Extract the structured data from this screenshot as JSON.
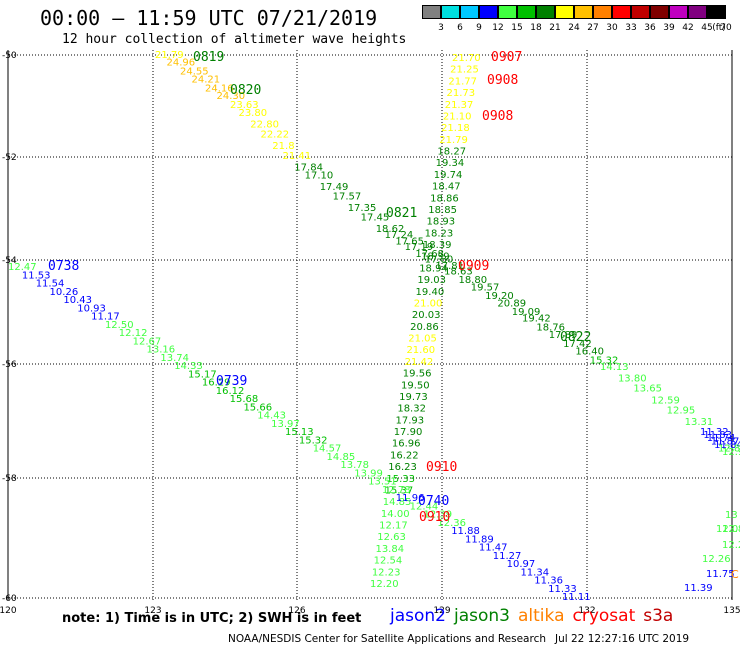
{
  "header": {
    "title": "00:00 – 11:59 UTC 07/21/2019",
    "subtitle": "12 hour collection of altimeter wave heights"
  },
  "colorbar": {
    "unit": "(ft)",
    "labels": [
      "3",
      "6",
      "9",
      "12",
      "15",
      "18",
      "21",
      "24",
      "27",
      "30",
      "33",
      "36",
      "39",
      "42",
      "45",
      "70"
    ],
    "colors": [
      "#808080",
      "#00e0e0",
      "#00c8ff",
      "#0000ff",
      "#40ff40",
      "#00c000",
      "#008000",
      "#ffff00",
      "#ffc000",
      "#ff8000",
      "#ff0000",
      "#c00000",
      "#800000",
      "#c000c0",
      "#800080",
      "#000000"
    ]
  },
  "axes": {
    "x_labels": [
      "120",
      "123",
      "126",
      "129",
      "132",
      "135"
    ],
    "y_labels": [
      "-50",
      "-52",
      "-54",
      "-56",
      "-58",
      "-60"
    ]
  },
  "tracks": [
    {
      "name": "t1",
      "points": [
        {
          "v": "21.79",
          "c": "#ffff00"
        },
        {
          "v": "24.96",
          "c": "#ffc000"
        },
        {
          "v": "24.55",
          "c": "#ffc000"
        },
        {
          "v": "24.21",
          "c": "#ffc000"
        },
        {
          "v": "24.16",
          "c": "#ffc000"
        },
        {
          "v": "24.30",
          "c": "#ffc000"
        },
        {
          "v": "23.63",
          "c": "#ffff00"
        },
        {
          "v": "23.80",
          "c": "#ffff00"
        },
        {
          "v": "22.80",
          "c": "#ffff00"
        },
        {
          "v": "22.22",
          "c": "#ffff00"
        },
        {
          "v": "21.8",
          "c": "#ffff00"
        },
        {
          "v": "21.41",
          "c": "#ffff00"
        },
        {
          "v": "17.84",
          "c": "#008000"
        },
        {
          "v": "17.10",
          "c": "#008000"
        },
        {
          "v": "17.49",
          "c": "#008000"
        },
        {
          "v": "17.57",
          "c": "#008000"
        },
        {
          "v": "17.35",
          "c": "#008000"
        },
        {
          "v": "17.45",
          "c": "#008000"
        },
        {
          "v": "18.62",
          "c": "#008000"
        },
        {
          "v": "17.24",
          "c": "#008000"
        },
        {
          "v": "17.65",
          "c": "#008000"
        },
        {
          "v": "17.19",
          "c": "#008000"
        },
        {
          "v": "17.68",
          "c": "#008000"
        },
        {
          "v": "17.80",
          "c": "#008000"
        },
        {
          "v": "17.81",
          "c": "#008000"
        },
        {
          "v": "18.63",
          "c": "#008000"
        },
        {
          "v": "18.80",
          "c": "#008000"
        },
        {
          "v": "19.57",
          "c": "#008000"
        },
        {
          "v": "19.20",
          "c": "#008000"
        },
        {
          "v": "20.89",
          "c": "#008000"
        },
        {
          "v": "19.09",
          "c": "#008000"
        },
        {
          "v": "19.42",
          "c": "#008000"
        },
        {
          "v": "18.76",
          "c": "#008000"
        },
        {
          "v": "17.89",
          "c": "#008000"
        },
        {
          "v": "17.42",
          "c": "#008000"
        },
        {
          "v": "16.40",
          "c": "#008000"
        },
        {
          "v": "15.32",
          "c": "#00c000"
        },
        {
          "v": "14.13",
          "c": "#40ff40"
        },
        {
          "v": "13.80",
          "c": "#40ff40"
        },
        {
          "v": "13.65",
          "c": "#40ff40"
        },
        {
          "v": "12.59",
          "c": "#40ff40"
        },
        {
          "v": "12.95",
          "c": "#40ff40"
        },
        {
          "v": "13.31",
          "c": "#40ff40"
        },
        {
          "v": "11.32",
          "c": "#0000ff"
        },
        {
          "v": "11.83",
          "c": "#0000ff"
        },
        {
          "v": "11.74",
          "c": "#0000ff"
        },
        {
          "v": "11.87",
          "c": "#0000ff"
        },
        {
          "v": "11.84",
          "c": "#0000ff"
        },
        {
          "v": "12.8",
          "c": "#40ff40"
        },
        {
          "v": "12.9",
          "c": "#40ff40"
        }
      ]
    },
    {
      "name": "t2",
      "points": [
        {
          "v": "21.70",
          "c": "#ffff00"
        },
        {
          "v": "21.25",
          "c": "#ffff00"
        },
        {
          "v": "21.77",
          "c": "#ffff00"
        },
        {
          "v": "21.73",
          "c": "#ffff00"
        },
        {
          "v": "21.37",
          "c": "#ffff00"
        },
        {
          "v": "21.10",
          "c": "#ffff00"
        },
        {
          "v": "21.18",
          "c": "#ffff00"
        },
        {
          "v": "21.79",
          "c": "#ffff00"
        },
        {
          "v": "18.27",
          "c": "#008000"
        },
        {
          "v": "19.34",
          "c": "#008000"
        },
        {
          "v": "19.74",
          "c": "#008000"
        },
        {
          "v": "18.47",
          "c": "#008000"
        },
        {
          "v": "18.86",
          "c": "#008000"
        },
        {
          "v": "18.85",
          "c": "#008000"
        },
        {
          "v": "18.93",
          "c": "#008000"
        },
        {
          "v": "18.23",
          "c": "#008000"
        },
        {
          "v": "18.39",
          "c": "#008000"
        },
        {
          "v": "18.39",
          "c": "#008000"
        },
        {
          "v": "18.94",
          "c": "#008000"
        },
        {
          "v": "19.03",
          "c": "#008000"
        },
        {
          "v": "19.40",
          "c": "#008000"
        },
        {
          "v": "21.00",
          "c": "#ffff00"
        },
        {
          "v": "20.03",
          "c": "#008000"
        },
        {
          "v": "20.86",
          "c": "#008000"
        },
        {
          "v": "21.05",
          "c": "#ffff00"
        },
        {
          "v": "21.60",
          "c": "#ffff00"
        },
        {
          "v": "21.42",
          "c": "#ffff00"
        },
        {
          "v": "19.56",
          "c": "#008000"
        },
        {
          "v": "19.50",
          "c": "#008000"
        },
        {
          "v": "19.73",
          "c": "#008000"
        },
        {
          "v": "18.32",
          "c": "#008000"
        },
        {
          "v": "17.93",
          "c": "#008000"
        },
        {
          "v": "17.90",
          "c": "#008000"
        },
        {
          "v": "16.96",
          "c": "#008000"
        },
        {
          "v": "16.22",
          "c": "#008000"
        },
        {
          "v": "16.23",
          "c": "#008000"
        },
        {
          "v": "15.33",
          "c": "#00c000"
        },
        {
          "v": "15.37",
          "c": "#00c000"
        },
        {
          "v": "14.85",
          "c": "#40ff40"
        },
        {
          "v": "14.00",
          "c": "#40ff40"
        },
        {
          "v": "12.17",
          "c": "#40ff40"
        },
        {
          "v": "12.63",
          "c": "#40ff40"
        },
        {
          "v": "13.84",
          "c": "#40ff40"
        },
        {
          "v": "12.54",
          "c": "#40ff40"
        },
        {
          "v": "12.23",
          "c": "#40ff40"
        },
        {
          "v": "12.20",
          "c": "#40ff40"
        }
      ]
    },
    {
      "name": "t3",
      "points": [
        {
          "v": "12.47",
          "c": "#40ff40"
        },
        {
          "v": "11.53",
          "c": "#0000ff"
        },
        {
          "v": "11.54",
          "c": "#0000ff"
        },
        {
          "v": "10.26",
          "c": "#0000ff"
        },
        {
          "v": "10.43",
          "c": "#0000ff"
        },
        {
          "v": "10.93",
          "c": "#0000ff"
        },
        {
          "v": "11.17",
          "c": "#0000ff"
        },
        {
          "v": "12.50",
          "c": "#40ff40"
        },
        {
          "v": "12.12",
          "c": "#40ff40"
        },
        {
          "v": "12.67",
          "c": "#40ff40"
        },
        {
          "v": "13.16",
          "c": "#40ff40"
        },
        {
          "v": "13.74",
          "c": "#40ff40"
        },
        {
          "v": "14.33",
          "c": "#40ff40"
        },
        {
          "v": "15.17",
          "c": "#00c000"
        },
        {
          "v": "16.29",
          "c": "#00c000"
        },
        {
          "v": "16.12",
          "c": "#00c000"
        },
        {
          "v": "15.68",
          "c": "#00c000"
        },
        {
          "v": "15.66",
          "c": "#00c000"
        },
        {
          "v": "14.43",
          "c": "#40ff40"
        },
        {
          "v": "13.97",
          "c": "#40ff40"
        },
        {
          "v": "15.13",
          "c": "#00c000"
        },
        {
          "v": "15.32",
          "c": "#00c000"
        },
        {
          "v": "14.57",
          "c": "#40ff40"
        },
        {
          "v": "14.85",
          "c": "#40ff40"
        },
        {
          "v": "13.78",
          "c": "#40ff40"
        },
        {
          "v": "13.99",
          "c": "#40ff40"
        },
        {
          "v": "13.51",
          "c": "#40ff40"
        },
        {
          "v": "12.78",
          "c": "#40ff40"
        },
        {
          "v": "11.96",
          "c": "#0000ff"
        },
        {
          "v": "12.44",
          "c": "#40ff40"
        },
        {
          "v": "12.39",
          "c": "#40ff40"
        },
        {
          "v": "12.36",
          "c": "#40ff40"
        },
        {
          "v": "11.88",
          "c": "#0000ff"
        },
        {
          "v": "11.89",
          "c": "#0000ff"
        },
        {
          "v": "11.47",
          "c": "#0000ff"
        },
        {
          "v": "11.27",
          "c": "#0000ff"
        },
        {
          "v": "10.97",
          "c": "#0000ff"
        },
        {
          "v": "11.34",
          "c": "#0000ff"
        },
        {
          "v": "11.36",
          "c": "#0000ff"
        },
        {
          "v": "11.33",
          "c": "#0000ff"
        },
        {
          "v": "11.11",
          "c": "#0000ff"
        }
      ]
    },
    {
      "name": "t4",
      "points": [
        {
          "v": "13",
          "c": "#40ff40"
        },
        {
          "v": "12.8",
          "c": "#40ff40"
        },
        {
          "v": "12.0",
          "c": "#40ff40"
        },
        {
          "v": "12.22",
          "c": "#40ff40"
        },
        {
          "v": "12.26",
          "c": "#40ff40"
        },
        {
          "v": "11.75",
          "c": "#0000ff"
        },
        {
          "v": "11.39",
          "c": "#0000ff"
        }
      ]
    }
  ],
  "orphan_labels": [
    {
      "v": "C",
      "c": "#ff8000"
    }
  ],
  "time_labels": [
    {
      "v": "0819",
      "c": "#008000"
    },
    {
      "v": "0820",
      "c": "#008000"
    },
    {
      "v": "0821",
      "c": "#008000"
    },
    {
      "v": "0822",
      "c": "#008000"
    },
    {
      "v": "0907",
      "c": "#ff0000"
    },
    {
      "v": "0908",
      "c": "#ff0000"
    },
    {
      "v": "0908",
      "c": "#ff0000"
    },
    {
      "v": "0909",
      "c": "#ff0000"
    },
    {
      "v": "0910",
      "c": "#ff0000"
    },
    {
      "v": "0910",
      "c": "#ff0000"
    },
    {
      "v": "0738",
      "c": "#0000ff"
    },
    {
      "v": "0739",
      "c": "#0000ff"
    },
    {
      "v": "0740",
      "c": "#0000ff"
    }
  ],
  "footer": {
    "note": "note: 1) Time is in UTC; 2) SWH is in feet",
    "legend": [
      {
        "label": "jason2",
        "c": "#0000ff"
      },
      {
        "label": "jason3",
        "c": "#008000"
      },
      {
        "label": "altika",
        "c": "#ff8000"
      },
      {
        "label": "cryosat",
        "c": "#ff0000"
      },
      {
        "label": "s3a",
        "c": "#c00000"
      }
    ],
    "credit": "NOAA/NESDIS Center for Satellite Applications and Research",
    "timestamp": "Jul 22 12:27:16 UTC 2019"
  }
}
